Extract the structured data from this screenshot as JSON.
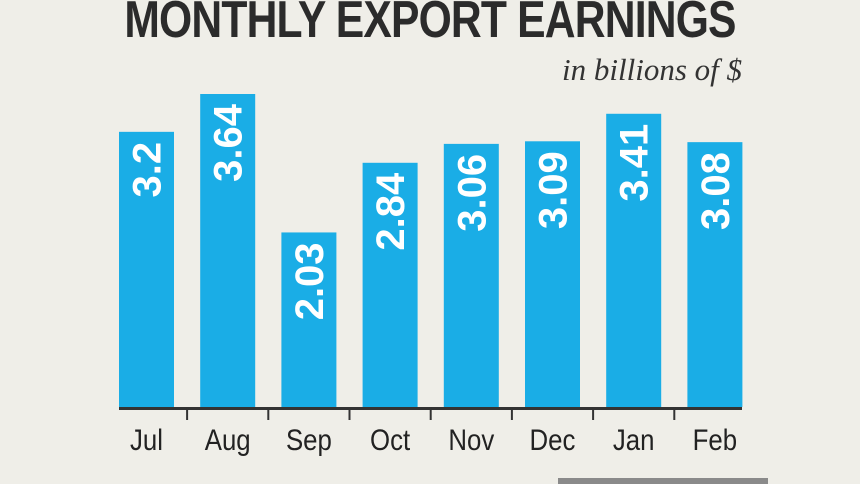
{
  "chart_data": {
    "type": "bar",
    "title": "MONTHLY EXPORT EARNINGS",
    "subtitle": "in billions of $",
    "categories": [
      "Jul",
      "Aug",
      "Sep",
      "Oct",
      "Nov",
      "Dec",
      "Jan",
      "Feb"
    ],
    "values": [
      3.2,
      3.64,
      2.03,
      2.84,
      3.06,
      3.09,
      3.41,
      3.08
    ],
    "labels": [
      "3.2",
      "3.64",
      "2.03",
      "2.84",
      "3.06",
      "3.09",
      "3.41",
      "3.08"
    ],
    "xlabel": "",
    "ylabel": "",
    "ylim": [
      0,
      3.64
    ],
    "grid": false,
    "legend": "none",
    "colors": {
      "bar": "#1aade6",
      "label": "#ffffff",
      "axis": "#333333",
      "background": "#efeee8"
    }
  }
}
